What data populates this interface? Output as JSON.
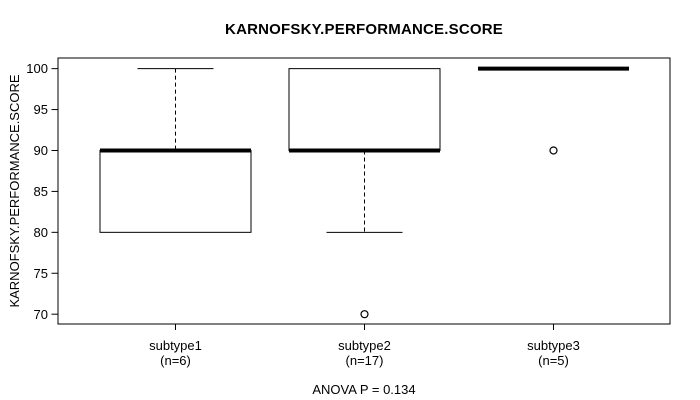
{
  "page": {
    "background": "#ffffff",
    "foreground": "#000000"
  },
  "chart_data": {
    "type": "boxplot",
    "title": "KARNOFSKY.PERFORMANCE.SCORE",
    "ylabel": "KARNOFSKY.PERFORMANCE.SCORE",
    "xlabel": "",
    "annotation": "ANOVA P = 0.134",
    "ylim": [
      68.8,
      101.3
    ],
    "yticks": [
      70,
      75,
      80,
      85,
      90,
      95,
      100
    ],
    "grid": false,
    "legend": false,
    "groups": [
      {
        "label": "subtype1",
        "n_label": "(n=6)",
        "stats": {
          "whisker_low": 80,
          "q1": 80,
          "median": 90,
          "q3": 90,
          "whisker_high": 100
        },
        "outliers": []
      },
      {
        "label": "subtype2",
        "n_label": "(n=17)",
        "stats": {
          "whisker_low": 80,
          "q1": 90,
          "median": 90,
          "q3": 100,
          "whisker_high": 100
        },
        "outliers": [
          70
        ]
      },
      {
        "label": "subtype3",
        "n_label": "(n=5)",
        "stats": {
          "whisker_low": 100,
          "q1": 100,
          "median": 100,
          "q3": 100,
          "whisker_high": 100
        },
        "outliers": [
          90
        ]
      }
    ]
  }
}
